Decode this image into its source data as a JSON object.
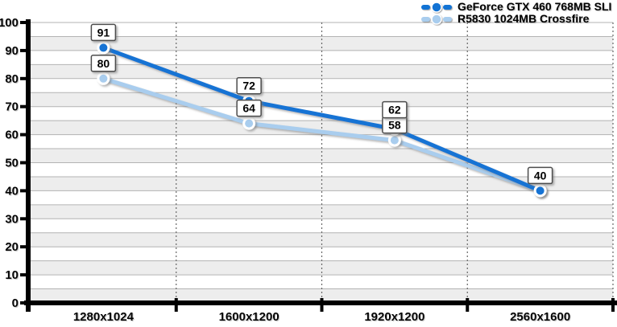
{
  "chart_data": {
    "type": "line",
    "title": "",
    "xlabel": "",
    "ylabel": "",
    "categories": [
      "1280x1024",
      "1600x1200",
      "1920x1200",
      "2560x1600"
    ],
    "series": [
      {
        "name": "GeForce GTX 460 768MB SLI",
        "color": "#1273d4",
        "values": [
          91,
          72,
          62,
          40
        ]
      },
      {
        "name": "R5830 1024MB Crossfire",
        "color": "#a9cdee",
        "values": [
          80,
          64,
          58,
          40
        ]
      }
    ],
    "ylim": [
      0,
      100
    ],
    "y_ticks": [
      0,
      10,
      20,
      30,
      40,
      50,
      60,
      70,
      80,
      90,
      100
    ],
    "band_step": 5,
    "grid": true,
    "data_labels": true,
    "legend_position": "top-right"
  },
  "style": {
    "band_color": "#ededed",
    "gridline_color": "#b3b3b3",
    "axis_color": "#000000",
    "dotted_line_color": "#666666",
    "label_box_bg": "#ffffff",
    "label_box_border": "#4d4d4d",
    "text_color": "#000000",
    "marker_ring_color": "#ffffff"
  }
}
